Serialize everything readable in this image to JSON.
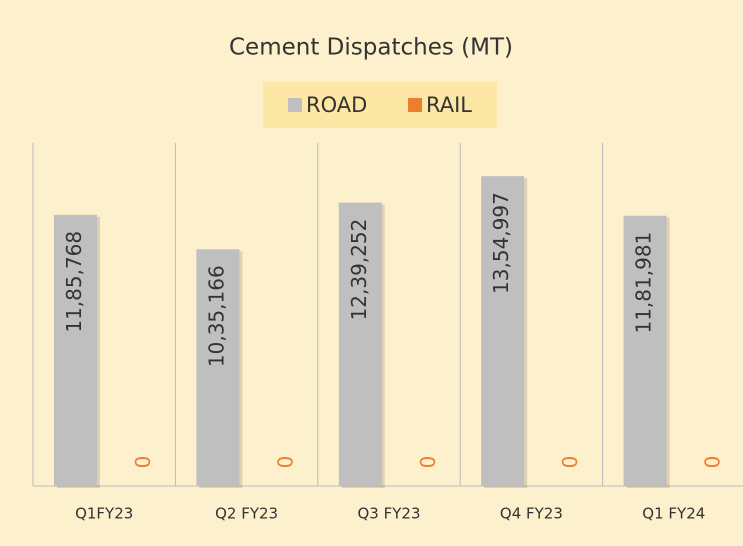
{
  "chart_data": {
    "type": "bar",
    "title": "Cement Dispatches (MT)",
    "categories": [
      "Q1FY23",
      "Q2 FY23",
      "Q3 FY23",
      "Q4 FY23",
      "Q1 FY24"
    ],
    "series": [
      {
        "name": "ROAD",
        "color": "#bfbfbf",
        "values": [
          1185768,
          1035166,
          1239252,
          1354997,
          1181981
        ],
        "value_labels": [
          "11,85,768",
          "10,35,166",
          "12,39,252",
          "13,54,997",
          "11,81,981"
        ]
      },
      {
        "name": "RAIL",
        "color": "#ed7d31",
        "values": [
          0,
          0,
          0,
          0,
          0
        ]
      }
    ],
    "ylim": [
      0,
      1500000
    ]
  }
}
